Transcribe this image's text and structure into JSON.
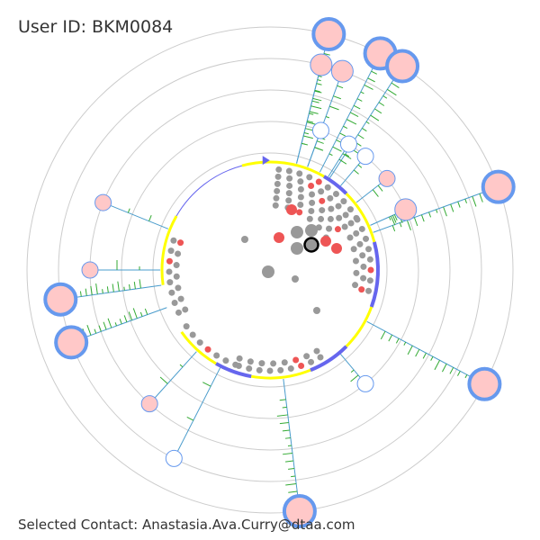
{
  "header": {
    "title": "User ID: BKM0084"
  },
  "footer": {
    "selected_contact": "Selected Contact: Anastasia.Ava.Curry@dtaa.com"
  },
  "colors": {
    "ring": "#cccccc",
    "inner_arc_yellow": "#ffff00",
    "inner_arc_blue": "#6666ee",
    "spoke": "#4a9ccc",
    "tick": "#33aa33",
    "node_fill": "#ffc8c8",
    "node_stroke": "#6699ee",
    "dot_gray": "#999999",
    "dot_red": "#ee5555",
    "selected_outline": "#000000"
  },
  "chart_data": {
    "type": "radial-network",
    "rings": 5,
    "center_selected_node": "Anastasia.Ava.Curry@dtaa.com",
    "inner_arcs": [
      {
        "color": "yellow",
        "start": 0,
        "end": 30
      },
      {
        "color": "blue",
        "start": 30,
        "end": 45
      },
      {
        "color": "yellow",
        "start": 45,
        "end": 75
      },
      {
        "color": "blue",
        "start": 75,
        "end": 110
      },
      {
        "color": "yellow",
        "start": 110,
        "end": 135
      },
      {
        "color": "blue",
        "start": 135,
        "end": 158
      },
      {
        "color": "yellow",
        "start": 158,
        "end": 190
      },
      {
        "color": "blue",
        "start": 190,
        "end": 210
      },
      {
        "color": "yellow",
        "start": 210,
        "end": 235
      },
      {
        "color": "yellow",
        "start": 262,
        "end": 300
      },
      {
        "color": "blue-thin",
        "start": 300,
        "end": 345
      },
      {
        "color": "yellow",
        "start": 345,
        "end": 360
      }
    ],
    "contacts": [
      {
        "angle": 14,
        "ring": 5,
        "size": "large",
        "filled": true
      },
      {
        "angle": 14,
        "ring": 4,
        "size": "medium",
        "filled": true
      },
      {
        "angle": 20,
        "ring": 4,
        "size": "medium",
        "filled": true
      },
      {
        "angle": 27,
        "ring": 5,
        "size": "large",
        "filled": true
      },
      {
        "angle": 33,
        "ring": 5,
        "size": "large",
        "filled": true
      },
      {
        "angle": 20,
        "ring": 2,
        "size": "small",
        "filled": false
      },
      {
        "angle": 32,
        "ring": 2,
        "size": "small",
        "filled": false
      },
      {
        "angle": 40,
        "ring": 2,
        "size": "small",
        "filled": false
      },
      {
        "angle": 52,
        "ring": 2,
        "size": "small",
        "filled": true
      },
      {
        "angle": 66,
        "ring": 2,
        "size": "medium",
        "filled": true
      },
      {
        "angle": 70,
        "ring": 5,
        "size": "large",
        "filled": true
      },
      {
        "angle": 118,
        "ring": 5,
        "size": "large",
        "filled": true
      },
      {
        "angle": 140,
        "ring": 2,
        "size": "small",
        "filled": false
      },
      {
        "angle": 173,
        "ring": 5,
        "size": "large",
        "filled": true
      },
      {
        "angle": 207,
        "ring": 4,
        "size": "small",
        "filled": false
      },
      {
        "angle": 222,
        "ring": 3,
        "size": "small",
        "filled": true
      },
      {
        "angle": 250,
        "ring": 4,
        "size": "large",
        "filled": true
      },
      {
        "angle": 262,
        "ring": 4,
        "size": "large",
        "filled": true
      },
      {
        "angle": 270,
        "ring": 3,
        "size": "small",
        "filled": true
      },
      {
        "angle": 292,
        "ring": 3,
        "size": "small",
        "filled": true
      }
    ]
  }
}
